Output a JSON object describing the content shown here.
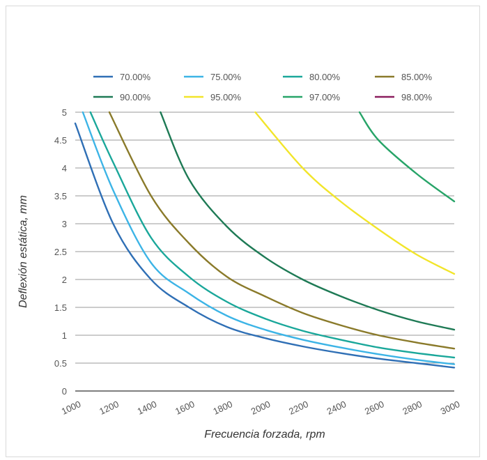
{
  "chart_data": {
    "type": "line",
    "title": "",
    "xlabel": "Frecuencia forzada, rpm",
    "ylabel": "Deflexión estática, mm",
    "xlim": [
      1000,
      3000
    ],
    "ylim": [
      0,
      5
    ],
    "x_ticks": [
      "1000",
      "1200",
      "1400",
      "1600",
      "1800",
      "2000",
      "2200",
      "2400",
      "2600",
      "2800",
      "3000"
    ],
    "y_ticks": [
      "0",
      "0.5",
      "1",
      "1.5",
      "2",
      "2.5",
      "3",
      "3.5",
      "4",
      "4.5",
      "5"
    ],
    "grid": true,
    "legend_position": "top",
    "series": [
      {
        "name": "70.00%",
        "color": "#2f6fb5",
        "x": [
          1000,
          1200,
          1400,
          1600,
          1800,
          2000,
          2200,
          2400,
          2600,
          2800,
          3000
        ],
        "y": [
          4.8,
          3.0,
          2.0,
          1.5,
          1.15,
          0.95,
          0.8,
          0.68,
          0.58,
          0.5,
          0.42
        ]
      },
      {
        "name": "75.00%",
        "color": "#3cb4e6",
        "x": [
          1040,
          1200,
          1400,
          1600,
          1800,
          2000,
          2200,
          2400,
          2600,
          2800,
          3000
        ],
        "y": [
          5.0,
          3.6,
          2.3,
          1.75,
          1.35,
          1.1,
          0.92,
          0.78,
          0.66,
          0.56,
          0.48
        ]
      },
      {
        "name": "80.00%",
        "color": "#1aa79a",
        "x": [
          1080,
          1200,
          1400,
          1600,
          1800,
          2000,
          2200,
          2400,
          2600,
          2800,
          3000
        ],
        "y": [
          5.0,
          4.1,
          2.75,
          2.05,
          1.6,
          1.3,
          1.08,
          0.92,
          0.78,
          0.68,
          0.6
        ]
      },
      {
        "name": "85.00%",
        "color": "#8a7a2a",
        "x": [
          1180,
          1400,
          1600,
          1800,
          2000,
          2200,
          2400,
          2600,
          2800,
          3000
        ],
        "y": [
          5.0,
          3.5,
          2.65,
          2.05,
          1.7,
          1.4,
          1.18,
          1.0,
          0.87,
          0.76
        ]
      },
      {
        "name": "90.00%",
        "color": "#1e7a55",
        "x": [
          1450,
          1600,
          1800,
          2000,
          2200,
          2400,
          2600,
          2800,
          3000
        ],
        "y": [
          5.0,
          3.8,
          2.95,
          2.4,
          2.0,
          1.7,
          1.45,
          1.25,
          1.1
        ]
      },
      {
        "name": "95.00%",
        "color": "#f2e52a",
        "x": [
          1950,
          2200,
          2400,
          2600,
          2800,
          3000
        ],
        "y": [
          5.0,
          4.0,
          3.4,
          2.9,
          2.45,
          2.1
        ]
      },
      {
        "name": "97.00%",
        "color": "#27a468",
        "x": [
          2500,
          2600,
          2800,
          3000
        ],
        "y": [
          5.0,
          4.5,
          3.9,
          3.4
        ]
      },
      {
        "name": "98.00%",
        "color": "#8b1d5e",
        "x": [],
        "y": []
      }
    ]
  }
}
